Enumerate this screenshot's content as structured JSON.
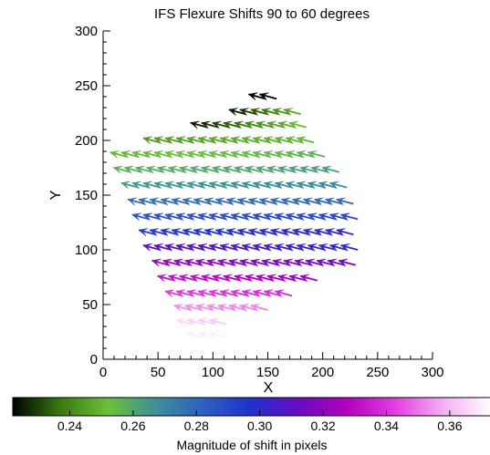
{
  "chart_data": {
    "type": "quiver",
    "title": "IFS Flexure Shifts 90 to 60 degrees",
    "xlabel": "X",
    "ylabel": "Y",
    "xlim": [
      0,
      300
    ],
    "ylim": [
      0,
      300
    ],
    "xticks": [
      0,
      50,
      100,
      150,
      200,
      250,
      300
    ],
    "yticks": [
      0,
      50,
      100,
      150,
      200,
      250,
      300
    ],
    "grid": false,
    "arrow_direction_deg": 165,
    "colorbar": {
      "label": "Magnitude of shift in pixels",
      "range": [
        0.222,
        0.373
      ],
      "ticks": [
        0.24,
        0.26,
        0.28,
        0.3,
        0.32,
        0.34,
        0.36
      ],
      "colormap": [
        "#000000",
        "#3a7a10",
        "#6cc03a",
        "#3d8f9c",
        "#2d5fc0",
        "#2030d0",
        "#6a0ac0",
        "#b400c0",
        "#e040e0",
        "#f2b0f2",
        "#ffffff"
      ]
    },
    "rows": [
      {
        "y": 238,
        "x_start": 148,
        "x_end": 162,
        "mag_start": 0.222,
        "mag_end": 0.223
      },
      {
        "y": 224,
        "x_start": 130,
        "x_end": 182,
        "mag_start": 0.225,
        "mag_end": 0.247
      },
      {
        "y": 212,
        "x_start": 95,
        "x_end": 188,
        "mag_start": 0.225,
        "mag_end": 0.252
      },
      {
        "y": 198,
        "x_start": 52,
        "x_end": 198,
        "mag_start": 0.244,
        "mag_end": 0.25
      },
      {
        "y": 185,
        "x_start": 22,
        "x_end": 210,
        "mag_start": 0.25,
        "mag_end": 0.257
      },
      {
        "y": 171,
        "x_start": 25,
        "x_end": 218,
        "mag_start": 0.257,
        "mag_end": 0.263
      },
      {
        "y": 157,
        "x_start": 32,
        "x_end": 225,
        "mag_start": 0.264,
        "mag_end": 0.27
      },
      {
        "y": 142,
        "x_start": 38,
        "x_end": 230,
        "mag_start": 0.277,
        "mag_end": 0.279
      },
      {
        "y": 128,
        "x_start": 42,
        "x_end": 233,
        "mag_start": 0.285,
        "mag_end": 0.29
      },
      {
        "y": 114,
        "x_start": 48,
        "x_end": 235,
        "mag_start": 0.294,
        "mag_end": 0.302
      },
      {
        "y": 100,
        "x_start": 52,
        "x_end": 240,
        "mag_start": 0.311,
        "mag_end": 0.299
      },
      {
        "y": 86,
        "x_start": 60,
        "x_end": 235,
        "mag_start": 0.322,
        "mag_end": 0.314
      },
      {
        "y": 72,
        "x_start": 65,
        "x_end": 198,
        "mag_start": 0.333,
        "mag_end": 0.323
      },
      {
        "y": 58,
        "x_start": 72,
        "x_end": 175,
        "mag_start": 0.342,
        "mag_end": 0.338
      },
      {
        "y": 45,
        "x_start": 80,
        "x_end": 150,
        "mag_start": 0.354,
        "mag_end": 0.352
      },
      {
        "y": 32,
        "x_start": 82,
        "x_end": 118,
        "mag_start": 0.366,
        "mag_end": 0.362
      },
      {
        "y": 20,
        "x_start": 92,
        "x_end": 112,
        "mag_start": 0.37,
        "mag_end": 0.37
      }
    ],
    "x_step": 10,
    "arrow_length": 16
  }
}
